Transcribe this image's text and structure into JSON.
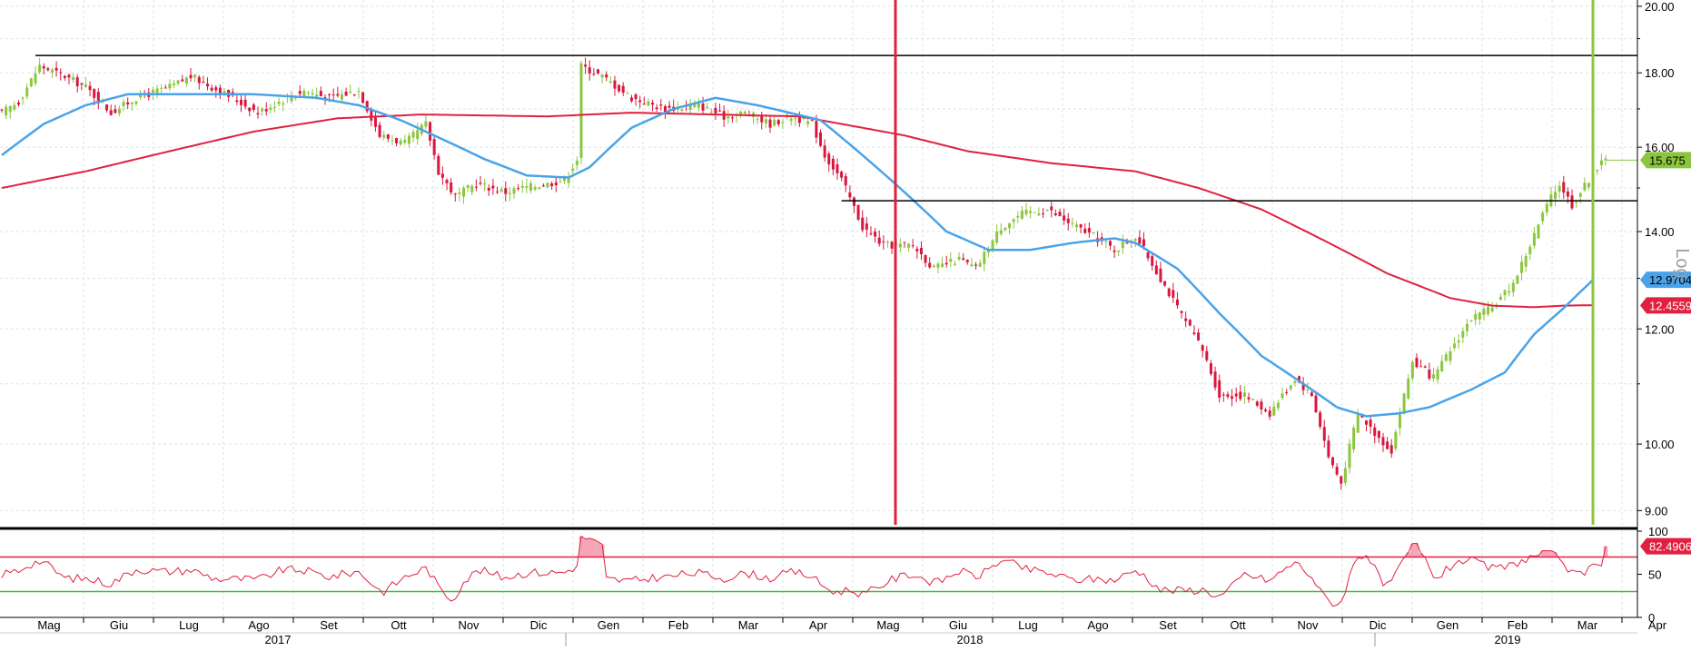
{
  "colors": {
    "grid": "#d7e4ea",
    "up_candle": "#8cc63f",
    "down_candle": "#d9163d",
    "ma_fast": "#4aa3e8",
    "ma_slow": "#e0203f",
    "rsi_line": "#e0203f",
    "rsi_fill": "#f4a6b4",
    "rsi_upper": "#e0203f",
    "rsi_lower": "#3bbf3b",
    "hline": "#000000",
    "vline_red": "#e0203f",
    "vline_green": "#8cc63f",
    "axis": "#000000"
  },
  "chart_data": [
    {
      "type": "candlestick",
      "y_scale": "log",
      "ylim": [
        8.8,
        20.2
      ],
      "y_ticks": [
        "20.00",
        "18.00",
        "16.00",
        "14.00",
        "12.00",
        "10.00",
        "9.00"
      ],
      "y_tick_values": [
        20,
        18,
        16,
        14,
        12,
        10,
        9
      ],
      "scale_label": "Log",
      "x_months": [
        "Mag",
        "Giu",
        "Lug",
        "Ago",
        "Set",
        "Ott",
        "Nov",
        "Dic",
        "Gen",
        "Feb",
        "Mar",
        "Apr",
        "Mag",
        "Giu",
        "Lug",
        "Ago",
        "Set",
        "Ott",
        "Nov",
        "Dic",
        "Gen",
        "Feb",
        "Mar",
        "Apr"
      ],
      "x_years": [
        "2017",
        "2018",
        "2019"
      ],
      "price_anchors": [
        [
          0,
          16.9
        ],
        [
          4,
          17.2
        ],
        [
          9,
          18.2
        ],
        [
          15,
          17.9
        ],
        [
          20,
          17.6
        ],
        [
          26,
          16.9
        ],
        [
          32,
          17.3
        ],
        [
          40,
          17.6
        ],
        [
          45,
          17.9
        ],
        [
          50,
          17.6
        ],
        [
          55,
          17.3
        ],
        [
          61,
          16.9
        ],
        [
          66,
          17.2
        ],
        [
          72,
          17.5
        ],
        [
          78,
          17.3
        ],
        [
          85,
          17.5
        ],
        [
          90,
          16.3
        ],
        [
          96,
          16.1
        ],
        [
          101,
          16.6
        ],
        [
          104,
          15.4
        ],
        [
          108,
          14.8
        ],
        [
          113,
          15.1
        ],
        [
          120,
          14.9
        ],
        [
          124,
          15.0
        ],
        [
          130,
          15.1
        ],
        [
          134,
          15.2
        ],
        [
          137,
          15.7
        ],
        [
          138,
          18.2
        ],
        [
          143,
          17.9
        ],
        [
          150,
          17.3
        ],
        [
          158,
          17.0
        ],
        [
          166,
          17.1
        ],
        [
          172,
          16.8
        ],
        [
          177,
          16.9
        ],
        [
          183,
          16.6
        ],
        [
          188,
          16.8
        ],
        [
          193,
          16.6
        ],
        [
          196,
          15.8
        ],
        [
          200,
          15.2
        ],
        [
          205,
          14.1
        ],
        [
          210,
          13.7
        ],
        [
          217,
          13.7
        ],
        [
          222,
          13.2
        ],
        [
          228,
          13.4
        ],
        [
          232,
          13.2
        ],
        [
          238,
          14.1
        ],
        [
          243,
          14.4
        ],
        [
          249,
          14.5
        ],
        [
          254,
          14.2
        ],
        [
          260,
          13.9
        ],
        [
          265,
          13.6
        ],
        [
          270,
          13.9
        ],
        [
          274,
          13.3
        ],
        [
          280,
          12.4
        ],
        [
          286,
          11.6
        ],
        [
          290,
          10.8
        ],
        [
          296,
          10.8
        ],
        [
          302,
          10.5
        ],
        [
          308,
          11.1
        ],
        [
          312,
          10.8
        ],
        [
          316,
          9.8
        ],
        [
          319,
          9.4
        ],
        [
          323,
          10.5
        ],
        [
          328,
          10.1
        ],
        [
          331,
          9.9
        ],
        [
          333,
          10.5
        ],
        [
          336,
          11.4
        ],
        [
          341,
          11.1
        ],
        [
          345,
          11.6
        ],
        [
          350,
          12.2
        ],
        [
          355,
          12.4
        ],
        [
          360,
          12.9
        ],
        [
          364,
          13.7
        ],
        [
          368,
          14.6
        ],
        [
          371,
          15.1
        ],
        [
          374,
          14.6
        ],
        [
          378,
          15.2
        ],
        [
          381,
          15.6
        ],
        [
          382,
          15.675
        ]
      ],
      "ma_fast": {
        "label": "12.9704",
        "last": 12.9704,
        "anchors": [
          [
            0,
            15.8
          ],
          [
            10,
            16.6
          ],
          [
            20,
            17.1
          ],
          [
            30,
            17.4
          ],
          [
            45,
            17.4
          ],
          [
            60,
            17.4
          ],
          [
            75,
            17.3
          ],
          [
            85,
            17.1
          ],
          [
            95,
            16.7
          ],
          [
            105,
            16.2
          ],
          [
            115,
            15.7
          ],
          [
            125,
            15.3
          ],
          [
            135,
            15.25
          ],
          [
            140,
            15.5
          ],
          [
            150,
            16.5
          ],
          [
            160,
            17.0
          ],
          [
            170,
            17.3
          ],
          [
            180,
            17.1
          ],
          [
            195,
            16.7
          ],
          [
            205,
            15.8
          ],
          [
            215,
            14.9
          ],
          [
            225,
            14.0
          ],
          [
            235,
            13.6
          ],
          [
            245,
            13.6
          ],
          [
            255,
            13.75
          ],
          [
            265,
            13.85
          ],
          [
            270,
            13.75
          ],
          [
            280,
            13.2
          ],
          [
            290,
            12.3
          ],
          [
            300,
            11.5
          ],
          [
            310,
            11.0
          ],
          [
            318,
            10.6
          ],
          [
            325,
            10.45
          ],
          [
            333,
            10.5
          ],
          [
            340,
            10.6
          ],
          [
            350,
            10.9
          ],
          [
            358,
            11.2
          ],
          [
            365,
            11.9
          ],
          [
            372,
            12.4
          ],
          [
            379,
            12.97
          ]
        ]
      },
      "ma_slow": {
        "label": "12.4559",
        "last": 12.4559,
        "anchors": [
          [
            0,
            15.0
          ],
          [
            20,
            15.4
          ],
          [
            40,
            15.9
          ],
          [
            60,
            16.4
          ],
          [
            80,
            16.75
          ],
          [
            100,
            16.85
          ],
          [
            130,
            16.8
          ],
          [
            150,
            16.9
          ],
          [
            170,
            16.85
          ],
          [
            190,
            16.8
          ],
          [
            200,
            16.6
          ],
          [
            215,
            16.3
          ],
          [
            230,
            15.9
          ],
          [
            250,
            15.6
          ],
          [
            270,
            15.4
          ],
          [
            285,
            15.0
          ],
          [
            300,
            14.5
          ],
          [
            315,
            13.8
          ],
          [
            330,
            13.1
          ],
          [
            345,
            12.6
          ],
          [
            355,
            12.45
          ],
          [
            365,
            12.42
          ],
          [
            372,
            12.45
          ],
          [
            379,
            12.46
          ]
        ]
      },
      "last_price": 15.675,
      "last_price_label": "15.675",
      "horizontal_lines": [
        18.5,
        14.7
      ],
      "vertical_markers": [
        {
          "month": "Mag",
          "year": "2018",
          "color": "red"
        },
        {
          "month": "Mar",
          "year": "2019",
          "color": "green"
        }
      ]
    },
    {
      "type": "rsi",
      "ylim": [
        0,
        100
      ],
      "y_ticks": [
        "100",
        "50",
        "0"
      ],
      "y_tick_values": [
        100,
        50,
        0
      ],
      "upper_level": 70,
      "lower_level": 30,
      "last": 82.4906,
      "last_label": "82.4906"
    }
  ]
}
